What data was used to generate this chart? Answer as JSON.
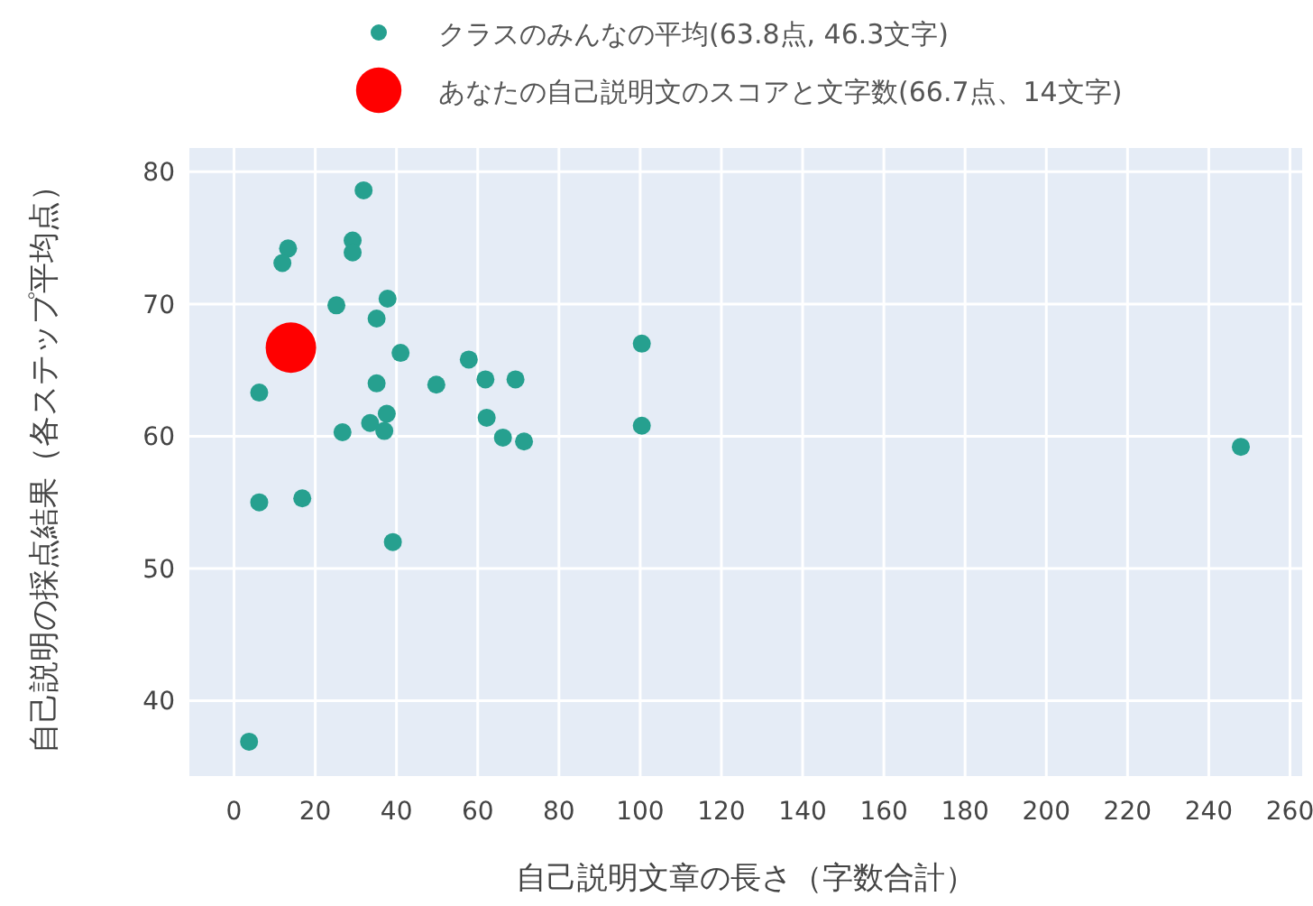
{
  "chart_data": {
    "type": "scatter",
    "xlabel": "自己説明文章の長さ（字数合計）",
    "ylabel": "自己説明の採点結果（各ステップ平均点）",
    "xlim": [
      -11,
      263
    ],
    "xticks": [
      0,
      20,
      40,
      60,
      80,
      100,
      120,
      140,
      160,
      180,
      200,
      220,
      240,
      260
    ],
    "ylim": [
      34.3,
      81.8
    ],
    "yticks": [
      40,
      50,
      60,
      70,
      80
    ],
    "grid": true,
    "legend": "top",
    "marker": "circle",
    "series": [
      {
        "name": "クラスのみんなの平均(63.8点, 46.3文字)",
        "color": "#26a08f",
        "x": [
          31.9,
          13.3,
          11.9,
          29.2,
          29.2,
          25.2,
          37.8,
          35.1,
          41.0,
          57.8,
          61.9,
          69.3,
          49.8,
          35.1,
          6.2,
          62.2,
          66.2,
          71.4,
          37.6,
          33.5,
          37.0,
          26.7,
          6.2,
          16.8,
          39.1,
          3.7,
          100.4,
          100.4,
          247.9
        ],
        "values": [
          78.6,
          74.2,
          73.1,
          74.8,
          73.9,
          69.9,
          70.4,
          68.9,
          66.3,
          65.8,
          64.3,
          64.3,
          63.9,
          64.0,
          63.3,
          61.4,
          59.9,
          59.6,
          61.7,
          61.0,
          60.4,
          60.3,
          55.0,
          55.3,
          52.0,
          36.9,
          67.0,
          60.8,
          59.2
        ]
      },
      {
        "name": "あなたの自己説明文のスコアと文字数(66.7点、14文字)",
        "color": "#ff0000",
        "x": [
          14
        ],
        "values": [
          66.7
        ]
      }
    ]
  }
}
